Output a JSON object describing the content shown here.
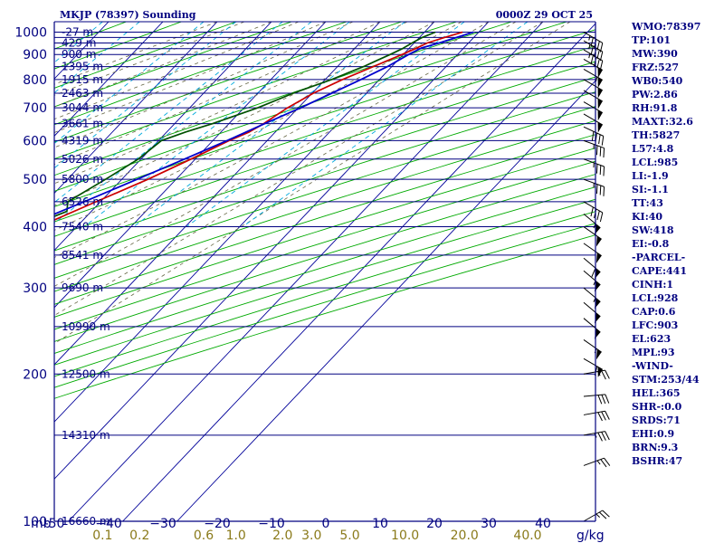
{
  "chart_data": {
    "type": "skewt-sounding",
    "title_left": "MKJP (78397) Sounding",
    "title_right": "0000Z 29 OCT 25",
    "pressure_axis": {
      "unit_label": "mb",
      "ticks": [
        100,
        200,
        300,
        400,
        500,
        600,
        700,
        800,
        900,
        1000
      ],
      "range": [
        1050,
        100
      ]
    },
    "isobars": [
      100,
      150,
      200,
      250,
      300,
      350,
      400,
      450,
      500,
      550,
      600,
      650,
      700,
      750,
      800,
      850,
      900,
      925,
      950,
      975,
      1000,
      1050
    ],
    "height_labels": [
      {
        "p": 100,
        "label": "16660 m"
      },
      {
        "p": 150,
        "label": "14310 m"
      },
      {
        "p": 200,
        "label": "12500 m"
      },
      {
        "p": 250,
        "label": "10990 m"
      },
      {
        "p": 300,
        "label": "9690 m"
      },
      {
        "p": 350,
        "label": "8541 m"
      },
      {
        "p": 400,
        "label": "7540 m"
      },
      {
        "p": 450,
        "label": "6526 m"
      },
      {
        "p": 500,
        "label": "5800 m"
      },
      {
        "p": 550,
        "label": "5026 m"
      },
      {
        "p": 600,
        "label": "4319 m"
      },
      {
        "p": 650,
        "label": "3661 m"
      },
      {
        "p": 700,
        "label": "3044 m"
      },
      {
        "p": 750,
        "label": "2463 m"
      },
      {
        "p": 800,
        "label": "1915 m"
      },
      {
        "p": 850,
        "label": "1395 m"
      },
      {
        "p": 900,
        "label": "900 m"
      },
      {
        "p": 950,
        "label": "429 m"
      },
      {
        "p": 1000,
        "label": "-27 m"
      }
    ],
    "temperature_axis": {
      "unit": "C",
      "ticks": [
        -50,
        -40,
        -30,
        -20,
        -10,
        0,
        10,
        20,
        30,
        40
      ],
      "tick_labels": [
        "-50",
        "−40",
        "−30",
        "−20",
        "−10",
        "0",
        "10",
        "20",
        "30",
        "40"
      ]
    },
    "mixing_ratio_axis": {
      "unit_label": "g/kg",
      "ticks": [
        0.1,
        0.2,
        0.6,
        1.0,
        2.0,
        3.0,
        5.0,
        10.0,
        20.0,
        40.0
      ],
      "tick_labels": [
        "0.1",
        "0.2",
        "0.6",
        "1.0",
        "2.0",
        "3.0",
        "5.0",
        "10.0",
        "20.0",
        "40.0"
      ]
    },
    "series": [
      {
        "kind": "temperature",
        "color": "#cc0000",
        "points": [
          {
            "p": 1000,
            "t": 27.0
          },
          {
            "p": 975,
            "t": 24.6
          },
          {
            "p": 950,
            "t": 22.4
          },
          {
            "p": 925,
            "t": 21.2
          },
          {
            "p": 900,
            "t": 19.8
          },
          {
            "p": 875,
            "t": 18.2
          },
          {
            "p": 850,
            "t": 16.6
          },
          {
            "p": 800,
            "t": 13.2
          },
          {
            "p": 750,
            "t": 10.2
          },
          {
            "p": 700,
            "t": 8.0
          },
          {
            "p": 675,
            "t": 7.2
          },
          {
            "p": 650,
            "t": 6.4
          },
          {
            "p": 625,
            "t": 5.2
          },
          {
            "p": 600,
            "t": 3.0
          },
          {
            "p": 550,
            "t": -0.8
          },
          {
            "p": 500,
            "t": -5.2
          },
          {
            "p": 450,
            "t": -10.8
          },
          {
            "p": 400,
            "t": -17.0
          },
          {
            "p": 350,
            "t": -24.0
          },
          {
            "p": 300,
            "t": -32.5
          },
          {
            "p": 250,
            "t": -42.5
          },
          {
            "p": 200,
            "t": -54.0
          },
          {
            "p": 175,
            "t": -60.5
          },
          {
            "p": 150,
            "t": -67.5
          },
          {
            "p": 125,
            "t": -74.5
          },
          {
            "p": 110,
            "t": -77.5
          },
          {
            "p": 100,
            "t": -79.0
          }
        ]
      },
      {
        "kind": "dewpoint",
        "color": "#005000",
        "points": [
          {
            "p": 1000,
            "t": 22.0
          },
          {
            "p": 975,
            "t": 20.5
          },
          {
            "p": 950,
            "t": 19.6
          },
          {
            "p": 925,
            "t": 18.8
          },
          {
            "p": 900,
            "t": 17.6
          },
          {
            "p": 875,
            "t": 16.2
          },
          {
            "p": 850,
            "t": 14.8
          },
          {
            "p": 800,
            "t": 11.2
          },
          {
            "p": 750,
            "t": 6.5
          },
          {
            "p": 700,
            "t": 2.5
          },
          {
            "p": 650,
            "t": -3.0
          },
          {
            "p": 625,
            "t": -6.5
          },
          {
            "p": 600,
            "t": -9.5
          },
          {
            "p": 550,
            "t": -10.5
          },
          {
            "p": 500,
            "t": -13.0
          },
          {
            "p": 450,
            "t": -16.0
          },
          {
            "p": 430,
            "t": -14.5
          },
          {
            "p": 400,
            "t": -19.0
          },
          {
            "p": 350,
            "t": -27.0
          },
          {
            "p": 300,
            "t": -36.0
          },
          {
            "p": 260,
            "t": -45.5
          },
          {
            "p": 250,
            "t": -47.5
          },
          {
            "p": 230,
            "t": -46.5
          },
          {
            "p": 200,
            "t": -58.0
          },
          {
            "p": 175,
            "t": -65.0
          },
          {
            "p": 150,
            "t": -74.0
          },
          {
            "p": 125,
            "t": -84.0
          },
          {
            "p": 110,
            "t": -88.0
          },
          {
            "p": 100,
            "t": -88.5
          }
        ]
      },
      {
        "kind": "parcel",
        "color": "#0000cc",
        "points": [
          {
            "p": 1000,
            "t": 29.0
          },
          {
            "p": 950,
            "t": 24.6
          },
          {
            "p": 928,
            "t": 22.2
          },
          {
            "p": 900,
            "t": 21.0
          },
          {
            "p": 850,
            "t": 19.2
          },
          {
            "p": 800,
            "t": 16.6
          },
          {
            "p": 750,
            "t": 13.6
          },
          {
            "p": 700,
            "t": 10.4
          },
          {
            "p": 650,
            "t": 6.6
          },
          {
            "p": 600,
            "t": 2.6
          },
          {
            "p": 550,
            "t": -2.0
          },
          {
            "p": 500,
            "t": -7.2
          },
          {
            "p": 450,
            "t": -13.0
          },
          {
            "p": 400,
            "t": -19.8
          },
          {
            "p": 350,
            "t": -27.6
          },
          {
            "p": 300,
            "t": -36.4
          },
          {
            "p": 250,
            "t": -46.5
          },
          {
            "p": 200,
            "t": -57.5
          },
          {
            "p": 175,
            "t": -63.5
          },
          {
            "p": 150,
            "t": -70.0
          },
          {
            "p": 125,
            "t": -77.0
          }
        ]
      }
    ],
    "wind_barbs_kt": [
      {
        "p": 100,
        "dir": 60,
        "spd": 25
      },
      {
        "p": 130,
        "dir": 70,
        "spd": 25
      },
      {
        "p": 150,
        "dir": 80,
        "spd": 35
      },
      {
        "p": 165,
        "dir": 80,
        "spd": 30
      },
      {
        "p": 180,
        "dir": 85,
        "spd": 30
      },
      {
        "p": 200,
        "dir": 80,
        "spd": 25
      },
      {
        "p": 215,
        "dir": 120,
        "spd": 60
      },
      {
        "p": 235,
        "dir": 125,
        "spd": 55
      },
      {
        "p": 260,
        "dir": 130,
        "spd": 50
      },
      {
        "p": 280,
        "dir": 130,
        "spd": 50
      },
      {
        "p": 300,
        "dir": 130,
        "spd": 55
      },
      {
        "p": 325,
        "dir": 130,
        "spd": 55
      },
      {
        "p": 345,
        "dir": 130,
        "spd": 60
      },
      {
        "p": 370,
        "dir": 125,
        "spd": 50
      },
      {
        "p": 400,
        "dir": 125,
        "spd": 50
      },
      {
        "p": 425,
        "dir": 130,
        "spd": 55
      },
      {
        "p": 450,
        "dir": 120,
        "spd": 40
      },
      {
        "p": 500,
        "dir": 110,
        "spd": 35
      },
      {
        "p": 550,
        "dir": 110,
        "spd": 35
      },
      {
        "p": 600,
        "dir": 110,
        "spd": 35
      },
      {
        "p": 640,
        "dir": 115,
        "spd": 40
      },
      {
        "p": 680,
        "dir": 120,
        "spd": 50
      },
      {
        "p": 720,
        "dir": 120,
        "spd": 50
      },
      {
        "p": 760,
        "dir": 120,
        "spd": 50
      },
      {
        "p": 800,
        "dir": 120,
        "spd": 50
      },
      {
        "p": 840,
        "dir": 120,
        "spd": 55
      },
      {
        "p": 880,
        "dir": 120,
        "spd": 50
      },
      {
        "p": 920,
        "dir": 120,
        "spd": 45
      },
      {
        "p": 960,
        "dir": 120,
        "spd": 45
      },
      {
        "p": 1000,
        "dir": 120,
        "spd": 45
      }
    ],
    "background_lines": {
      "isotherm_color": "#000099",
      "dry_adiabat_color": "#00aa00",
      "moist_adiabat_color": "#666644",
      "mixing_ratio_color": "#00aadd",
      "isobar_color": "#000080"
    }
  },
  "stats": [
    "WMO:78397",
    "TP:101",
    "MW:390",
    "FRZ:527",
    "WB0:540",
    "PW:2.86",
    "RH:91.8",
    "MAXT:32.6",
    "TH:5827",
    "L57:4.8",
    "LCL:985",
    "LI:-1.9",
    "SI:-1.1",
    "TT:43",
    "KI:40",
    "SW:418",
    "EI:-0.8",
    "-PARCEL-",
    "CAPE:441",
    "CINH:1",
    "LCL:928",
    "CAP:0.6",
    "LFC:903",
    "EL:623",
    "MPL:93",
    "-WIND-",
    "STM:253/44",
    "HEL:365",
    "SHR-:0.0",
    "SRDS:71",
    "EHI:0.9",
    "BRN:9.3",
    "BSHR:47"
  ]
}
